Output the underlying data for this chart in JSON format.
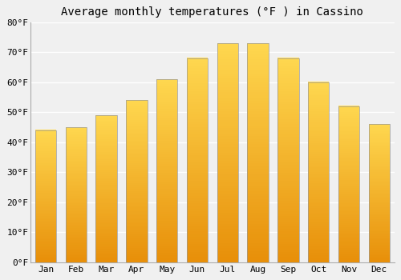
{
  "title": "Average monthly temperatures (°F ) in Cassino",
  "months": [
    "Jan",
    "Feb",
    "Mar",
    "Apr",
    "May",
    "Jun",
    "Jul",
    "Aug",
    "Sep",
    "Oct",
    "Nov",
    "Dec"
  ],
  "values": [
    44,
    45,
    49,
    54,
    61,
    68,
    73,
    73,
    68,
    60,
    52,
    46
  ],
  "ylim": [
    0,
    80
  ],
  "yticks": [
    0,
    10,
    20,
    30,
    40,
    50,
    60,
    70,
    80
  ],
  "ytick_labels": [
    "0°F",
    "10°F",
    "20°F",
    "30°F",
    "40°F",
    "50°F",
    "60°F",
    "70°F",
    "80°F"
  ],
  "background_color": "#f0f0f0",
  "grid_color": "#ffffff",
  "bar_color_dark": "#E8900A",
  "bar_color_light": "#FFD050",
  "bar_edge_color": "#888888",
  "title_fontsize": 10,
  "tick_fontsize": 8
}
